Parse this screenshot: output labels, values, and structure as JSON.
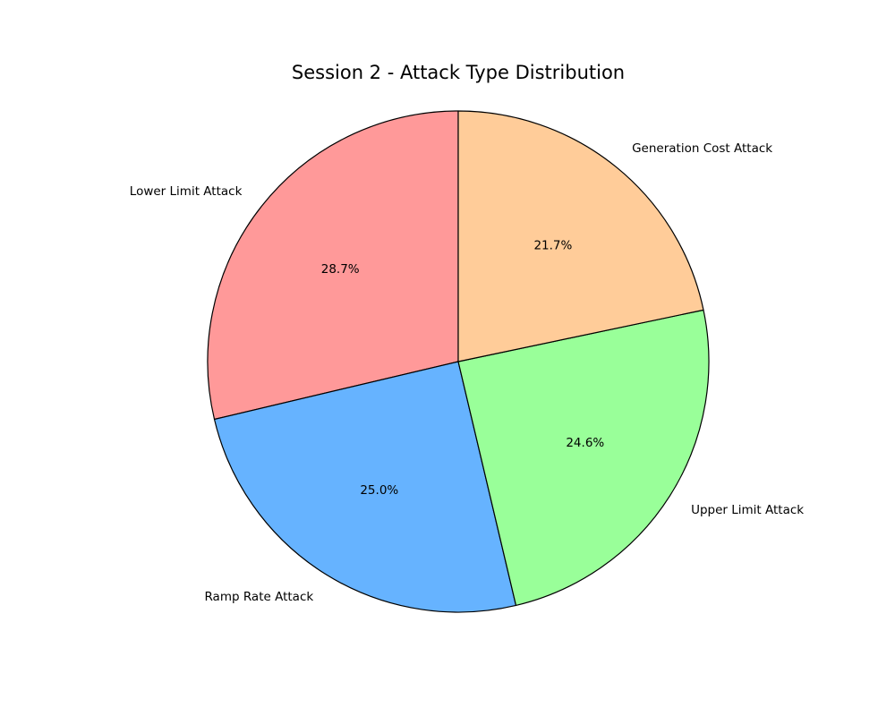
{
  "chart_data": {
    "type": "pie",
    "title": "Session 2 - Attack Type Distribution",
    "start_angle_deg": 90,
    "direction": "counterclockwise",
    "slices": [
      {
        "label": "Lower Limit Attack",
        "value": 28.7,
        "pct_label": "28.7%",
        "color": "#ff9999"
      },
      {
        "label": "Ramp Rate Attack",
        "value": 25.0,
        "pct_label": "25.0%",
        "color": "#66b3ff"
      },
      {
        "label": "Upper Limit Attack",
        "value": 24.6,
        "pct_label": "24.6%",
        "color": "#99ff99"
      },
      {
        "label": "Generation Cost Attack",
        "value": 21.7,
        "pct_label": "21.7%",
        "color": "#ffcc99"
      }
    ]
  }
}
